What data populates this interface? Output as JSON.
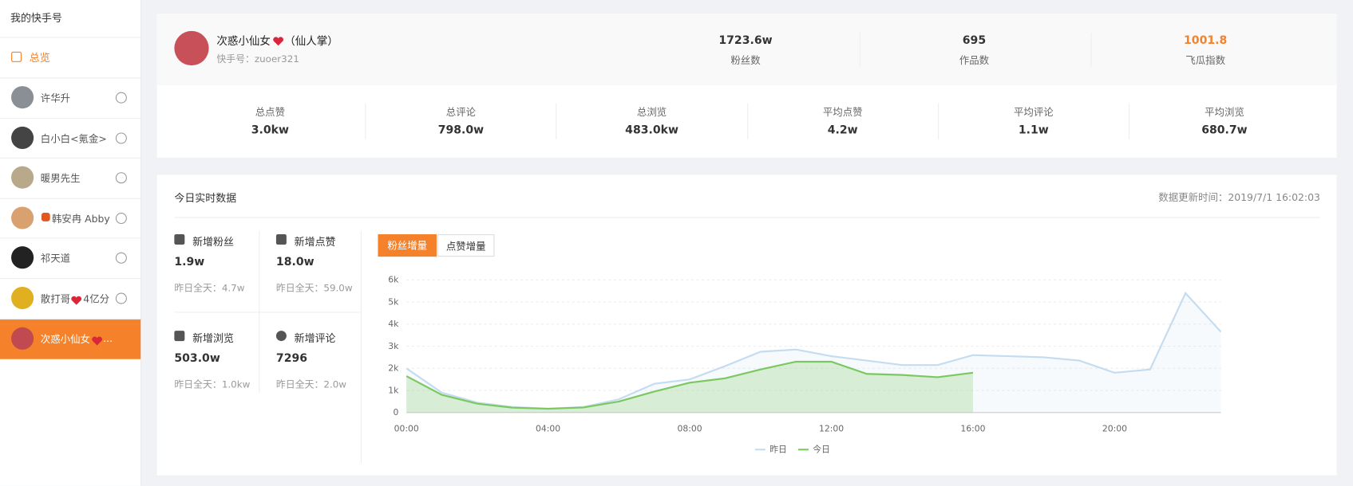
{
  "sidebar": {
    "title": "我的快手号",
    "overview": "总览",
    "accounts": [
      {
        "name": "许华升"
      },
      {
        "name": "白小白<氪金>"
      },
      {
        "name": "暖男先生"
      },
      {
        "name": "韩安冉 Abby"
      },
      {
        "name": "祁天道"
      },
      {
        "name": "散打哥",
        "suffix": "4亿分"
      },
      {
        "name": "次惑小仙女",
        "suffix": "...",
        "active": true
      }
    ]
  },
  "profile": {
    "name": "次惑小仙女",
    "tag": "（仙人掌）",
    "account_id": "快手号：zuoer321",
    "stats": [
      {
        "value": "1723.6w",
        "label": "粉丝数"
      },
      {
        "value": "695",
        "label": "作品数"
      },
      {
        "value": "1001.8",
        "label": "飞瓜指数",
        "highlight": true
      }
    ]
  },
  "totals": [
    {
      "label": "总点赞",
      "value": "3.0kw"
    },
    {
      "label": "总评论",
      "value": "798.0w"
    },
    {
      "label": "总浏览",
      "value": "483.0kw"
    },
    {
      "label": "平均点赞",
      "value": "4.2w"
    },
    {
      "label": "平均评论",
      "value": "1.1w"
    },
    {
      "label": "平均浏览",
      "value": "680.7w"
    }
  ],
  "realtime": {
    "title": "今日实时数据",
    "updated": "数据更新时间：2019/7/1 16:02:03",
    "items": [
      {
        "label": "新增粉丝",
        "value": "1.9w",
        "yesterday": "昨日全天：4.7w"
      },
      {
        "label": "新增点赞",
        "value": "18.0w",
        "yesterday": "昨日全天：59.0w"
      },
      {
        "label": "新增浏览",
        "value": "503.0w",
        "yesterday": "昨日全天：1.0kw"
      },
      {
        "label": "新增评论",
        "value": "7296",
        "yesterday": "昨日全天：2.0w"
      }
    ],
    "tabs": [
      "粉丝增量",
      "点赞增量"
    ]
  },
  "chart_data": {
    "type": "line",
    "categories": [
      "00:00",
      null,
      null,
      null,
      "04:00",
      null,
      null,
      null,
      "08:00",
      null,
      null,
      null,
      "12:00",
      null,
      null,
      null,
      "16:00",
      null,
      null,
      null,
      "20:00",
      null,
      null,
      null
    ],
    "series": [
      {
        "name": "昨日",
        "color": "#c5dcf0",
        "values": [
          2000,
          900,
          450,
          250,
          180,
          250,
          600,
          1300,
          1500,
          2100,
          2750,
          2850,
          2550,
          2350,
          2150,
          2150,
          2600,
          2550,
          2500,
          2350,
          1800,
          1950,
          5400,
          3650
        ]
      },
      {
        "name": "今日",
        "color": "#7cc860",
        "values": [
          1650,
          800,
          400,
          220,
          170,
          230,
          500,
          950,
          1350,
          1550,
          1950,
          2300,
          2300,
          1750,
          1700,
          1600,
          1800,
          null,
          null,
          null,
          null,
          null,
          null,
          null
        ]
      }
    ],
    "ylim": [
      0,
      6000
    ],
    "yticks": [
      0,
      {
        "value": 1000,
        "label": "1k"
      },
      {
        "value": 2000,
        "label": "2k"
      },
      {
        "value": 3000,
        "label": "3k"
      },
      {
        "value": 4000,
        "label": "4k"
      },
      {
        "value": 5000,
        "label": "5k"
      },
      {
        "value": 6000,
        "label": "6k"
      }
    ],
    "grid": true
  }
}
